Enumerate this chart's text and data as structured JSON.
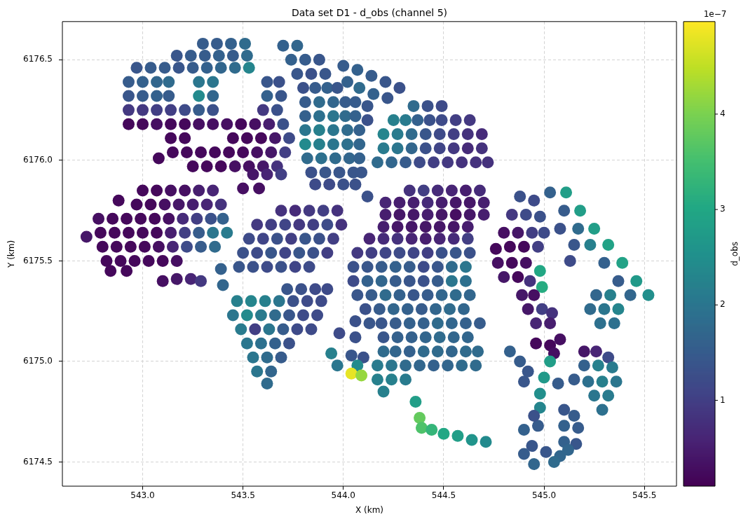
{
  "chart_data": {
    "type": "scatter",
    "title": "Data set D1 - d_obs (channel 5)",
    "xlabel": "X (km)",
    "ylabel": "Y (km)",
    "clabel": "d_obs",
    "xlim": [
      542.6,
      545.66
    ],
    "ylim": [
      6174.38,
      6176.69
    ],
    "xticks": [
      {
        "value": 543,
        "label": "543.0"
      },
      543.5,
      {
        "value": 544,
        "label": "544.0"
      },
      544.5,
      {
        "value": 545,
        "label": "545.0"
      },
      545.5
    ],
    "yticks": [
      6174.5,
      {
        "value": 6175,
        "label": "6175.0"
      },
      6175.5,
      {
        "value": 6176,
        "label": "6176.0"
      },
      6176.5
    ],
    "clim": [
      0.1,
      4.97
    ],
    "cticks": [
      1,
      2,
      3,
      4
    ],
    "annotations": [
      "1e−7"
    ],
    "grid": true,
    "marker": "circle",
    "x": [
      543.3,
      543.37,
      543.44,
      543.51,
      543.17,
      543.24,
      543.31,
      543.38,
      543.45,
      543.52,
      542.97,
      543.04,
      543.11,
      543.18,
      543.25,
      543.32,
      543.39,
      543.46,
      543.53,
      542.93,
      543.0,
      543.07,
      543.13,
      543.28,
      543.35,
      543.62,
      543.68,
      542.93,
      543.0,
      543.07,
      543.13,
      543.28,
      543.35,
      543.62,
      543.69,
      542.93,
      543.0,
      543.07,
      543.14,
      543.21,
      543.28,
      543.35,
      543.6,
      543.67,
      542.93,
      543.0,
      543.07,
      543.14,
      543.21,
      543.28,
      543.35,
      543.42,
      543.49,
      543.56,
      543.63,
      543.7,
      543.14,
      543.21,
      543.45,
      543.52,
      543.59,
      543.66,
      543.73,
      543.15,
      543.22,
      543.29,
      543.36,
      543.43,
      543.5,
      543.57,
      543.64,
      543.71,
      543.08,
      543.25,
      543.32,
      543.39,
      543.46,
      543.53,
      543.6,
      543.67,
      543.55,
      543.62,
      543.69,
      543.5,
      543.58,
      543.7,
      543.77,
      543.74,
      543.81,
      543.88,
      543.77,
      543.84,
      543.91,
      543.8,
      543.86,
      543.92,
      543.97,
      543.81,
      543.88,
      543.95,
      544.01,
      543.81,
      543.88,
      543.95,
      544.01,
      544.06,
      543.81,
      543.88,
      543.95,
      544.02,
      544.08,
      543.81,
      543.88,
      543.95,
      544.02,
      544.08,
      543.82,
      543.89,
      543.96,
      544.03,
      544.08,
      543.84,
      543.91,
      543.98,
      544.05,
      544.09,
      543.86,
      543.93,
      544.0,
      544.06,
      544.0,
      544.07,
      544.14,
      544.21,
      544.28,
      544.02,
      544.08,
      544.15,
      544.22,
      544.06,
      544.12,
      544.12,
      544.35,
      544.42,
      544.49,
      544.25,
      544.31,
      544.37,
      544.43,
      544.49,
      544.56,
      544.63,
      544.2,
      544.27,
      544.34,
      544.41,
      544.48,
      544.55,
      544.62,
      544.69,
      544.2,
      544.27,
      544.34,
      544.41,
      544.48,
      544.55,
      544.62,
      544.69,
      544.17,
      544.24,
      544.31,
      544.38,
      544.45,
      544.52,
      544.59,
      544.66,
      544.72,
      543.0,
      543.07,
      543.14,
      543.21,
      543.28,
      543.35,
      542.88,
      542.97,
      543.04,
      543.11,
      543.18,
      543.25,
      543.32,
      543.39,
      542.78,
      542.85,
      542.92,
      542.99,
      543.06,
      543.13,
      543.2,
      543.27,
      543.34,
      543.4,
      542.79,
      542.86,
      542.93,
      543.0,
      543.07,
      543.14,
      543.21,
      543.28,
      543.35,
      543.42,
      542.72,
      542.8,
      542.87,
      542.94,
      543.01,
      543.08,
      543.15,
      543.22,
      543.29,
      543.36,
      542.82,
      542.89,
      542.96,
      543.03,
      543.1,
      543.17,
      542.84,
      542.92,
      543.1,
      543.17,
      543.24,
      543.29,
      543.39,
      543.4,
      543.69,
      543.76,
      543.83,
      543.9,
      543.97,
      543.57,
      543.64,
      543.71,
      543.78,
      543.85,
      543.92,
      543.99,
      543.53,
      543.6,
      543.67,
      543.74,
      543.81,
      543.88,
      543.95,
      543.5,
      543.57,
      543.64,
      543.71,
      543.78,
      543.85,
      543.92,
      543.48,
      543.55,
      543.62,
      543.69,
      543.76,
      543.83,
      543.72,
      543.79,
      543.86,
      543.92,
      543.47,
      543.54,
      543.61,
      543.68,
      543.75,
      543.82,
      543.89,
      543.45,
      543.52,
      543.59,
      543.66,
      543.73,
      543.8,
      543.87,
      543.49,
      543.56,
      543.63,
      543.7,
      543.77,
      543.84,
      543.52,
      543.59,
      543.66,
      543.73,
      543.55,
      543.62,
      543.69,
      543.57,
      543.64,
      543.62,
      543.94,
      543.97,
      544.04,
      544.1,
      544.07,
      544.04,
      544.09,
      544.33,
      544.4,
      544.47,
      544.54,
      544.61,
      544.68,
      544.21,
      544.28,
      544.35,
      544.42,
      544.49,
      544.56,
      544.63,
      544.7,
      544.21,
      544.28,
      544.35,
      544.42,
      544.49,
      544.56,
      544.63,
      544.7,
      544.2,
      544.27,
      544.34,
      544.41,
      544.48,
      544.55,
      544.62,
      544.13,
      544.2,
      544.27,
      544.34,
      544.41,
      544.48,
      544.55,
      544.62,
      544.07,
      544.14,
      544.21,
      544.28,
      544.35,
      544.42,
      544.49,
      544.56,
      544.63,
      544.05,
      544.12,
      544.19,
      544.26,
      544.33,
      544.4,
      544.47,
      544.54,
      544.61,
      544.05,
      544.12,
      544.19,
      544.26,
      544.33,
      544.4,
      544.47,
      544.54,
      544.61,
      544.07,
      544.14,
      544.21,
      544.28,
      544.35,
      544.42,
      544.49,
      544.56,
      544.63,
      544.11,
      544.18,
      544.25,
      544.32,
      544.39,
      544.46,
      544.53,
      544.6,
      543.98,
      544.06,
      544.06,
      544.13,
      544.19,
      544.26,
      544.33,
      544.4,
      544.47,
      544.54,
      544.61,
      544.68,
      544.2,
      544.27,
      544.34,
      544.41,
      544.48,
      544.55,
      544.62,
      544.2,
      544.26,
      544.33,
      544.4,
      544.47,
      544.54,
      544.61,
      544.67,
      544.17,
      544.24,
      544.31,
      544.38,
      544.45,
      544.52,
      544.59,
      544.66,
      544.17,
      544.24,
      544.31,
      544.2,
      544.36,
      544.38,
      544.39,
      544.44,
      544.5,
      544.57,
      544.64,
      544.71,
      544.88,
      544.95,
      544.84,
      544.91,
      544.98,
      544.8,
      544.87,
      544.94,
      545.0,
      544.76,
      544.83,
      544.9,
      544.97,
      544.77,
      544.84,
      544.91,
      544.98,
      544.8,
      544.87,
      544.93,
      544.99,
      544.89,
      544.95,
      544.92,
      544.99,
      545.04,
      544.96,
      545.03,
      544.96,
      545.03,
      545.08,
      545.05,
      545.11,
      545.18,
      545.25,
      545.32,
      545.39,
      545.46,
      545.52,
      545.03,
      545.1,
      545.17,
      545.23,
      545.3,
      545.37,
      545.43,
      545.08,
      545.15,
      545.13,
      545.26,
      545.33,
      545.23,
      545.3,
      545.37,
      545.28,
      545.35,
      544.83,
      544.88,
      544.92,
      545.03,
      545.0,
      544.98,
      544.98,
      544.9,
      545.07,
      545.15,
      545.2,
      545.26,
      545.32,
      545.2,
      545.27,
      545.34,
      545.22,
      545.29,
      545.36,
      545.25,
      545.32,
      545.29,
      545.1,
      545.15,
      545.1,
      545.17,
      545.1,
      545.16,
      545.08,
      545.12,
      545.05,
      544.9,
      544.97,
      544.94,
      544.9,
      544.95,
      545.01,
      544.95,
      544.12
    ],
    "values": [
      6176.58,
      6176.58,
      6176.58,
      6176.58,
      6176.52,
      6176.52,
      6176.52,
      6176.52,
      6176.52,
      6176.52,
      6176.46,
      6176.46,
      6176.46,
      6176.46,
      6176.46,
      6176.46,
      6176.46,
      6176.46,
      6176.46,
      6176.39,
      6176.39,
      6176.39,
      6176.39,
      6176.39,
      6176.39,
      6176.39,
      6176.39,
      6176.32,
      6176.32,
      6176.32,
      6176.32,
      6176.32,
      6176.32,
      6176.32,
      6176.32,
      6176.25,
      6176.25,
      6176.25,
      6176.25,
      6176.25,
      6176.25,
      6176.25,
      6176.25,
      6176.25,
      6176.18,
      6176.18,
      6176.18,
      6176.18,
      6176.18,
      6176.18,
      6176.18,
      6176.18,
      6176.18,
      6176.18,
      6176.18,
      6176.18,
      6176.11,
      6176.11,
      6176.11,
      6176.11,
      6176.11,
      6176.11,
      6176.11,
      6176.04,
      6176.04,
      6176.04,
      6176.04,
      6176.04,
      6176.04,
      6176.04,
      6176.04,
      6176.04,
      6176.01,
      6175.97,
      6175.97,
      6175.97,
      6175.97,
      6175.97,
      6175.97,
      6175.97,
      6175.93,
      6175.93,
      6175.93,
      6175.86,
      6175.86,
      6176.57,
      6176.57,
      6176.5,
      6176.5,
      6176.5,
      6176.43,
      6176.43,
      6176.43,
      6176.36,
      6176.36,
      6176.36,
      6176.36,
      6176.29,
      6176.29,
      6176.29,
      6176.29,
      6176.22,
      6176.22,
      6176.22,
      6176.22,
      6176.22,
      6176.15,
      6176.15,
      6176.15,
      6176.15,
      6176.15,
      6176.08,
      6176.08,
      6176.08,
      6176.08,
      6176.08,
      6176.01,
      6176.01,
      6176.01,
      6176.01,
      6176.01,
      6175.94,
      6175.94,
      6175.94,
      6175.94,
      6175.94,
      6175.88,
      6175.88,
      6175.88,
      6175.88,
      6176.47,
      6176.45,
      6176.42,
      6176.39,
      6176.36,
      6176.39,
      6176.36,
      6176.33,
      6176.31,
      6176.29,
      6176.27,
      6176.2,
      6176.27,
      6176.27,
      6176.27,
      6176.2,
      6176.2,
      6176.2,
      6176.2,
      6176.2,
      6176.2,
      6176.2,
      6176.13,
      6176.13,
      6176.13,
      6176.13,
      6176.13,
      6176.13,
      6176.13,
      6176.13,
      6176.06,
      6176.06,
      6176.06,
      6176.06,
      6176.06,
      6176.06,
      6176.06,
      6176.06,
      6175.99,
      6175.99,
      6175.99,
      6175.99,
      6175.99,
      6175.99,
      6175.99,
      6175.99,
      6175.99,
      6175.85,
      6175.85,
      6175.85,
      6175.85,
      6175.85,
      6175.85,
      6175.8,
      6175.78,
      6175.78,
      6175.78,
      6175.78,
      6175.78,
      6175.78,
      6175.78,
      6175.71,
      6175.71,
      6175.71,
      6175.71,
      6175.71,
      6175.71,
      6175.71,
      6175.71,
      6175.71,
      6175.71,
      6175.64,
      6175.64,
      6175.64,
      6175.64,
      6175.64,
      6175.64,
      6175.64,
      6175.64,
      6175.64,
      6175.64,
      6175.62,
      6175.57,
      6175.57,
      6175.57,
      6175.57,
      6175.57,
      6175.57,
      6175.57,
      6175.57,
      6175.57,
      6175.5,
      6175.5,
      6175.5,
      6175.5,
      6175.5,
      6175.5,
      6175.45,
      6175.45,
      6175.4,
      6175.41,
      6175.41,
      6175.4,
      6175.46,
      6175.38,
      6175.75,
      6175.75,
      6175.75,
      6175.75,
      6175.75,
      6175.68,
      6175.68,
      6175.68,
      6175.68,
      6175.68,
      6175.68,
      6175.68,
      6175.61,
      6175.61,
      6175.61,
      6175.61,
      6175.61,
      6175.61,
      6175.61,
      6175.54,
      6175.54,
      6175.54,
      6175.54,
      6175.54,
      6175.54,
      6175.54,
      6175.47,
      6175.47,
      6175.47,
      6175.47,
      6175.47,
      6175.47,
      6175.36,
      6175.36,
      6175.36,
      6175.36,
      6175.3,
      6175.3,
      6175.3,
      6175.3,
      6175.3,
      6175.3,
      6175.3,
      6175.23,
      6175.23,
      6175.23,
      6175.23,
      6175.23,
      6175.23,
      6175.23,
      6175.16,
      6175.16,
      6175.16,
      6175.16,
      6175.16,
      6175.16,
      6175.09,
      6175.09,
      6175.09,
      6175.09,
      6175.02,
      6175.02,
      6175.02,
      6174.95,
      6174.95,
      6174.89,
      6175.04,
      6174.98,
      6175.03,
      6175.02,
      6174.98,
      6174.94,
      6174.93,
      6175.85,
      6175.85,
      6175.85,
      6175.85,
      6175.85,
      6175.85,
      6175.79,
      6175.79,
      6175.79,
      6175.79,
      6175.79,
      6175.79,
      6175.79,
      6175.79,
      6175.73,
      6175.73,
      6175.73,
      6175.73,
      6175.73,
      6175.73,
      6175.73,
      6175.73,
      6175.67,
      6175.67,
      6175.67,
      6175.67,
      6175.67,
      6175.67,
      6175.67,
      6175.61,
      6175.61,
      6175.61,
      6175.61,
      6175.61,
      6175.61,
      6175.61,
      6175.61,
      6175.54,
      6175.54,
      6175.54,
      6175.54,
      6175.54,
      6175.54,
      6175.54,
      6175.54,
      6175.54,
      6175.47,
      6175.47,
      6175.47,
      6175.47,
      6175.47,
      6175.47,
      6175.47,
      6175.47,
      6175.47,
      6175.4,
      6175.4,
      6175.4,
      6175.4,
      6175.4,
      6175.4,
      6175.4,
      6175.4,
      6175.4,
      6175.33,
      6175.33,
      6175.33,
      6175.33,
      6175.33,
      6175.33,
      6175.33,
      6175.33,
      6175.33,
      6175.26,
      6175.26,
      6175.26,
      6175.26,
      6175.26,
      6175.26,
      6175.26,
      6175.26,
      6175.14,
      6175.2,
      6175.12,
      6175.19,
      6175.19,
      6175.19,
      6175.19,
      6175.19,
      6175.19,
      6175.19,
      6175.19,
      6175.19,
      6175.12,
      6175.12,
      6175.12,
      6175.12,
      6175.12,
      6175.12,
      6175.12,
      6175.05,
      6175.05,
      6175.05,
      6175.05,
      6175.05,
      6175.05,
      6175.05,
      6175.05,
      6174.98,
      6174.98,
      6174.98,
      6174.98,
      6174.98,
      6174.98,
      6174.98,
      6174.98,
      6174.91,
      6174.91,
      6174.91,
      6174.85,
      6174.8,
      6174.72,
      6174.67,
      6174.66,
      6174.64,
      6174.63,
      6174.61,
      6174.6,
      6175.82,
      6175.8,
      6175.73,
      6175.73,
      6175.72,
      6175.64,
      6175.64,
      6175.64,
      6175.64,
      6175.56,
      6175.57,
      6175.57,
      6175.57,
      6175.49,
      6175.49,
      6175.49,
      6175.45,
      6175.42,
      6175.42,
      6175.4,
      6175.37,
      6175.33,
      6175.33,
      6175.26,
      6175.26,
      6175.24,
      6175.19,
      6175.19,
      6175.09,
      6175.08,
      6175.11,
      6175.04,
      6175.84,
      6175.75,
      6175.66,
      6175.58,
      6175.49,
      6175.4,
      6175.33,
      6175.84,
      6175.75,
      6175.66,
      6175.58,
      6175.49,
      6175.4,
      6175.33,
      6175.66,
      6175.58,
      6175.5,
      6175.33,
      6175.33,
      6175.26,
      6175.26,
      6175.26,
      6175.19,
      6175.19,
      6175.05,
      6175.0,
      6174.95,
      6175.0,
      6174.92,
      6174.84,
      6174.77,
      6174.9,
      6174.89,
      6174.91,
      6175.05,
      6175.05,
      6175.02,
      6174.98,
      6174.98,
      6174.97,
      6174.9,
      6174.9,
      6174.9,
      6174.83,
      6174.83,
      6174.76,
      6174.76,
      6174.73,
      6174.68,
      6174.67,
      6174.6,
      6174.59,
      6174.53,
      6174.56,
      6174.5,
      6174.66,
      6174.68,
      6174.58,
      6174.54,
      6174.49,
      6174.55,
      6174.73,
      6175.82
    ],
    "cvalues": [
      1.5,
      1.5,
      1.6,
      1.8,
      1.4,
      1.5,
      1.5,
      1.6,
      1.5,
      1.8,
      1.4,
      1.5,
      1.5,
      1.4,
      1.5,
      1.6,
      1.7,
      1.8,
      2.3,
      1.5,
      1.6,
      1.7,
      1.8,
      2.0,
      2.0,
      1.4,
      1.3,
      1.4,
      1.5,
      1.6,
      1.5,
      2.4,
      1.7,
      1.6,
      1.4,
      0.9,
      0.9,
      1.0,
      1.0,
      1.2,
      1.5,
      1.3,
      0.9,
      1.3,
      0.2,
      0.2,
      0.3,
      0.2,
      0.2,
      0.3,
      0.3,
      0.3,
      0.2,
      0.3,
      0.5,
      1.3,
      0.2,
      0.2,
      0.2,
      0.2,
      0.2,
      0.4,
      1.2,
      0.2,
      0.2,
      0.2,
      0.2,
      0.2,
      0.2,
      0.3,
      0.4,
      1.0,
      0.2,
      0.2,
      0.2,
      0.2,
      0.3,
      0.3,
      0.4,
      0.8,
      0.4,
      0.6,
      1.0,
      0.3,
      0.3,
      1.6,
      1.7,
      1.6,
      1.5,
      1.4,
      1.4,
      1.3,
      1.4,
      1.3,
      1.5,
      1.6,
      1.4,
      1.5,
      1.8,
      1.7,
      1.5,
      1.6,
      1.9,
      2.0,
      1.8,
      1.6,
      2.0,
      2.2,
      2.0,
      1.8,
      1.6,
      2.4,
      2.2,
      2.0,
      1.9,
      1.7,
      1.8,
      1.9,
      1.8,
      1.7,
      1.6,
      1.3,
      1.4,
      1.4,
      1.4,
      1.4,
      1.2,
      1.2,
      1.3,
      1.3,
      1.5,
      1.6,
      1.5,
      1.4,
      1.3,
      1.6,
      1.8,
      1.6,
      1.4,
      1.5,
      1.4,
      1.3,
      1.8,
      1.3,
      1.2,
      2.2,
      2.1,
      1.6,
      1.3,
      1.2,
      1.0,
      0.9,
      2.3,
      2.1,
      1.8,
      1.4,
      1.2,
      1.0,
      0.8,
      0.7,
      2.1,
      2.0,
      1.7,
      1.3,
      1.1,
      0.9,
      0.7,
      0.8,
      1.8,
      1.7,
      1.5,
      1.2,
      1.0,
      0.9,
      0.8,
      0.8,
      0.8,
      0.2,
      0.2,
      0.3,
      0.3,
      0.5,
      0.6,
      0.2,
      0.2,
      0.2,
      0.3,
      0.4,
      0.5,
      0.6,
      0.8,
      0.3,
      0.2,
      0.2,
      0.2,
      0.2,
      0.3,
      0.7,
      1.0,
      1.3,
      1.6,
      0.2,
      0.2,
      0.2,
      0.2,
      0.2,
      0.5,
      1.0,
      1.5,
      2.0,
      2.1,
      0.4,
      0.2,
      0.2,
      0.2,
      0.2,
      0.3,
      0.6,
      1.2,
      1.5,
      1.8,
      0.2,
      0.2,
      0.2,
      0.2,
      0.2,
      0.3,
      0.2,
      0.2,
      0.3,
      0.4,
      0.6,
      0.9,
      1.6,
      1.7,
      0.8,
      0.7,
      0.9,
      1.0,
      0.8,
      0.9,
      1.0,
      1.1,
      0.9,
      1.0,
      1.2,
      0.8,
      1.2,
      1.1,
      1.3,
      1.0,
      1.4,
      1.3,
      1.0,
      1.3,
      1.2,
      1.4,
      1.1,
      1.4,
      1.3,
      1.0,
      1.4,
      1.3,
      1.2,
      1.3,
      1.1,
      1.2,
      1.4,
      1.3,
      1.2,
      1.2,
      2.2,
      2.3,
      2.2,
      2.0,
      1.3,
      1.2,
      1.2,
      2.0,
      2.4,
      2.1,
      1.8,
      1.4,
      1.2,
      1.2,
      2.1,
      1.0,
      2.0,
      1.5,
      1.2,
      1.2,
      2.0,
      1.9,
      1.6,
      1.3,
      2.0,
      1.8,
      1.5,
      2.0,
      1.7,
      1.8,
      2.2,
      2.0,
      1.4,
      1.3,
      2.4,
      4.8,
      4.2,
      0.8,
      1.0,
      0.7,
      0.6,
      0.5,
      0.7,
      0.6,
      0.5,
      0.5,
      0.7,
      0.5,
      0.4,
      0.4,
      0.5,
      0.5,
      0.4,
      0.4,
      0.5,
      0.4,
      0.3,
      0.4,
      0.5,
      0.5,
      0.4,
      0.4,
      0.4,
      0.4,
      0.4,
      0.5,
      0.6,
      0.7,
      0.8,
      0.6,
      0.5,
      0.6,
      0.7,
      1.0,
      0.9,
      1.0,
      1.1,
      1.2,
      1.1,
      1.0,
      1.3,
      1.4,
      1.3,
      1.3,
      1.4,
      1.5,
      1.6,
      1.5,
      1.2,
      1.4,
      1.8,
      2.0,
      1.2,
      1.6,
      1.7,
      1.5,
      1.4,
      1.3,
      1.5,
      2.0,
      1.9,
      1.4,
      1.5,
      1.8,
      1.6,
      1.4,
      1.5,
      1.7,
      1.8,
      1.7,
      1.3,
      1.5,
      1.7,
      1.6,
      1.5,
      1.7,
      1.8,
      1.7,
      1.2,
      1.3,
      1.3,
      1.4,
      1.4,
      1.5,
      1.6,
      1.6,
      1.8,
      1.7,
      1.6,
      1.5,
      1.4,
      1.6,
      1.6,
      1.7,
      1.8,
      1.7,
      1.7,
      1.8,
      1.7,
      1.6,
      1.8,
      1.8,
      1.7,
      1.8,
      1.8,
      2.1,
      2.0,
      1.8,
      1.7,
      1.6,
      1.7,
      1.8,
      1.8,
      2.2,
      2.2,
      2.1,
      2.2,
      2.8,
      3.8,
      3.6,
      3.3,
      3.0,
      2.8,
      2.6,
      2.4,
      1.3,
      1.2,
      0.9,
      1.2,
      1.3,
      0.3,
      0.4,
      1.0,
      1.2,
      0.2,
      0.2,
      0.2,
      1.0,
      0.3,
      0.2,
      0.3,
      3.0,
      0.4,
      0.2,
      0.8,
      3.1,
      0.4,
      0.3,
      0.4,
      1.0,
      0.8,
      0.6,
      0.5,
      0.2,
      0.2,
      0.3,
      0.3,
      2.8,
      2.8,
      2.8,
      2.9,
      2.9,
      2.7,
      2.5,
      1.6,
      1.5,
      1.8,
      2.2,
      1.6,
      1.5,
      1.7,
      1.3,
      1.4,
      1.2,
      1.7,
      2.2,
      1.8,
      2.0,
      2.3,
      1.9,
      1.9,
      1.6,
      1.5,
      1.4,
      2.8,
      2.7,
      2.5,
      2.3,
      1.4,
      1.5,
      1.5,
      0.4,
      0.6,
      1.2,
      1.6,
      2.2,
      2.1,
      1.9,
      2.2,
      2.0,
      2.0,
      2.1,
      1.9,
      1.4,
      1.5,
      1.6,
      1.5,
      1.6,
      1.4,
      1.7,
      1.7,
      1.8,
      1.6,
      1.5,
      1.4,
      1.5,
      1.7,
      1.4,
      1.3,
      1.3
    ]
  }
}
